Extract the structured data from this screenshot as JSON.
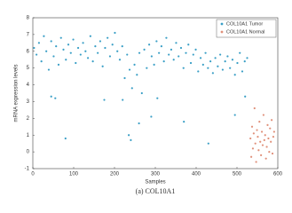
{
  "chart_data": {
    "type": "scatter",
    "title": "(a) COL10A1",
    "xlabel": "Samples",
    "ylabel": "mRNA expression levels",
    "xlim": [
      0,
      600
    ],
    "xticks": [
      0,
      100,
      200,
      300,
      400,
      500,
      600
    ],
    "ylim": [
      -1,
      8
    ],
    "yticks": [
      -1,
      0,
      1,
      2,
      3,
      4,
      5,
      6,
      7,
      8
    ],
    "grid": false,
    "legend": "top-right",
    "series": [
      {
        "name": "COL10A1 Tumor",
        "color": "#3a9fc6",
        "x": [
          3,
          9,
          15,
          21,
          27,
          33,
          39,
          45,
          51,
          57,
          63,
          69,
          75,
          81,
          87,
          93,
          99,
          105,
          111,
          117,
          123,
          129,
          135,
          141,
          147,
          153,
          159,
          165,
          171,
          177,
          183,
          189,
          195,
          201,
          207,
          213,
          219,
          225,
          231,
          237,
          243,
          249,
          255,
          261,
          267,
          273,
          279,
          285,
          291,
          297,
          303,
          309,
          315,
          321,
          327,
          333,
          339,
          345,
          351,
          357,
          363,
          369,
          375,
          381,
          387,
          393,
          399,
          405,
          411,
          417,
          423,
          429,
          435,
          441,
          447,
          453,
          459,
          465,
          471,
          477,
          483,
          489,
          495,
          501,
          507,
          513,
          519,
          525,
          45,
          55,
          80,
          175,
          220,
          240,
          235,
          260,
          290,
          305,
          370,
          430,
          495,
          520
        ],
        "values": [
          6.2,
          5.8,
          6.5,
          5.4,
          6.9,
          6.0,
          4.9,
          6.6,
          5.7,
          6.3,
          5.2,
          6.8,
          6.1,
          5.5,
          6.4,
          5.9,
          6.7,
          5.3,
          6.2,
          5.8,
          6.5,
          6.0,
          5.6,
          6.9,
          5.4,
          6.3,
          5.9,
          6.6,
          5.1,
          6.2,
          6.8,
          5.7,
          6.4,
          7.1,
          6.0,
          5.5,
          6.3,
          4.4,
          5.8,
          4.9,
          3.8,
          5.2,
          4.6,
          5.9,
          3.5,
          6.1,
          5.0,
          6.4,
          5.7,
          5.2,
          6.6,
          5.9,
          6.3,
          5.4,
          6.8,
          5.8,
          6.1,
          5.5,
          6.5,
          5.7,
          6.2,
          5.0,
          5.9,
          6.4,
          5.3,
          5.8,
          6.1,
          4.8,
          5.6,
          5.2,
          5.9,
          5.0,
          5.4,
          4.7,
          5.6,
          5.1,
          5.8,
          4.9,
          5.4,
          5.7,
          5.0,
          5.5,
          4.6,
          5.3,
          5.9,
          4.8,
          5.4,
          5.6,
          3.3,
          3.2,
          0.8,
          3.1,
          3.1,
          0.7,
          1.0,
          1.7,
          2.1,
          3.2,
          1.8,
          0.5,
          2.2,
          3.3
        ]
      },
      {
        "name": "COL10A1 Normal",
        "color": "#e0907a",
        "x": [
          533,
          535,
          537,
          539,
          541,
          543,
          545,
          547,
          549,
          551,
          553,
          555,
          557,
          559,
          561,
          563,
          565,
          567,
          569,
          571,
          573,
          575,
          577,
          579,
          581,
          583,
          585,
          587,
          589,
          591
        ],
        "values": [
          0.8,
          -0.3,
          1.5,
          0.2,
          1.1,
          2.6,
          0.5,
          -0.6,
          1.3,
          0.9,
          0.1,
          1.8,
          0.6,
          -0.2,
          1.2,
          0.4,
          2.2,
          0.7,
          1.0,
          -0.4,
          0.3,
          1.6,
          0.8,
          0.0,
          1.4,
          0.6,
          1.9,
          -0.1,
          0.9,
          1.2
        ]
      }
    ]
  }
}
